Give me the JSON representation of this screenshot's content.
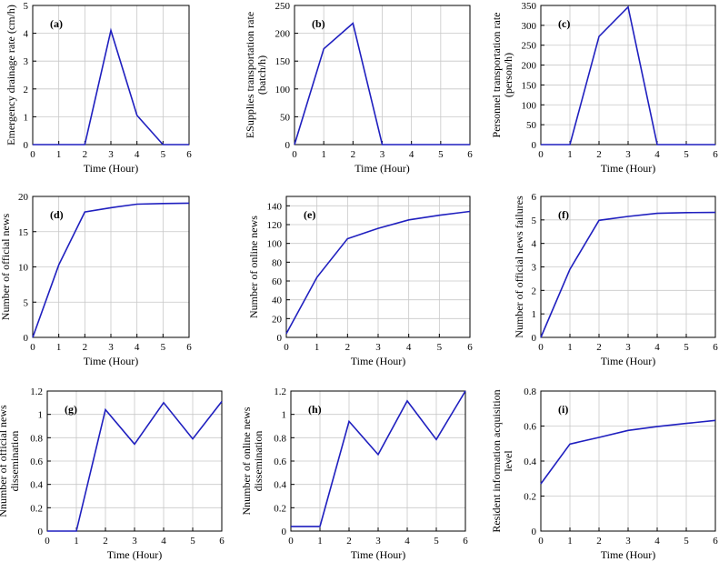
{
  "line_color": "#1f1fbf",
  "chart_data": [
    {
      "panel": "(a)",
      "type": "line",
      "xlabel": "Time (Hour)",
      "ylabel": [
        "Emergency drainage rate (cm/h)"
      ],
      "x": [
        0,
        1,
        2,
        3,
        4,
        5,
        6
      ],
      "values": [
        0,
        0,
        0,
        4.1,
        1.05,
        0,
        0
      ],
      "xlim": [
        0,
        6
      ],
      "ylim": [
        0,
        5
      ],
      "xticks": [
        "0",
        "1",
        "2",
        "3",
        "4",
        "5",
        "6"
      ],
      "yticks": [
        "0",
        "1",
        "2",
        "3",
        "4",
        "5"
      ],
      "grid": true
    },
    {
      "panel": "(b)",
      "type": "line",
      "xlabel": "Time (Hour)",
      "ylabel": [
        "ESupplies transportation rate",
        "(batch/h)"
      ],
      "x": [
        0,
        1,
        2,
        3,
        4,
        5,
        6
      ],
      "values": [
        0,
        172,
        218,
        0,
        0,
        0,
        0
      ],
      "xlim": [
        0,
        6
      ],
      "ylim": [
        0,
        250
      ],
      "xticks": [
        "0",
        "1",
        "2",
        "3",
        "4",
        "5",
        "6"
      ],
      "yticks": [
        "0",
        "50",
        "100",
        "150",
        "200",
        "250"
      ],
      "grid": true
    },
    {
      "panel": "(c)",
      "type": "line",
      "xlabel": "Time (Hour)",
      "ylabel": [
        "Personnel transportation rate",
        "(person/h)"
      ],
      "x": [
        0,
        1,
        2,
        3,
        4,
        5,
        6
      ],
      "values": [
        0,
        0,
        272,
        346,
        0,
        0,
        0
      ],
      "xlim": [
        0,
        6
      ],
      "ylim": [
        0,
        350
      ],
      "xticks": [
        "0",
        "1",
        "2",
        "3",
        "4",
        "5",
        "6"
      ],
      "yticks": [
        "0",
        "50",
        "100",
        "150",
        "200",
        "250",
        "300",
        "350"
      ],
      "grid": true
    },
    {
      "panel": "(d)",
      "type": "line",
      "xlabel": "Time (Hour)",
      "ylabel": [
        "Number of official news"
      ],
      "x": [
        0,
        1,
        2,
        3,
        4,
        5,
        6
      ],
      "values": [
        0,
        10.3,
        17.8,
        18.4,
        18.9,
        19.0,
        19.05
      ],
      "xlim": [
        0,
        6
      ],
      "ylim": [
        0,
        20
      ],
      "xticks": [
        "0",
        "1",
        "2",
        "3",
        "4",
        "5",
        "6"
      ],
      "yticks": [
        "0",
        "5",
        "10",
        "15",
        "20"
      ],
      "grid": true
    },
    {
      "panel": "(e)",
      "type": "line",
      "xlabel": "Time (Hour)",
      "ylabel": [
        "Number of online news"
      ],
      "x": [
        0,
        1,
        2,
        3,
        4,
        5,
        6
      ],
      "values": [
        4,
        64,
        105,
        116,
        125,
        130,
        134
      ],
      "xlim": [
        0,
        6
      ],
      "ylim": [
        0,
        150
      ],
      "xticks": [
        "0",
        "1",
        "2",
        "3",
        "4",
        "5",
        "6"
      ],
      "yticks": [
        "0",
        "20",
        "40",
        "60",
        "80",
        "100",
        "120",
        "140"
      ],
      "grid": true
    },
    {
      "panel": "(f)",
      "type": "line",
      "xlabel": "Time (Hour)",
      "ylabel": [
        "Number of official news failures"
      ],
      "x": [
        0,
        1,
        2,
        3,
        4,
        5,
        6
      ],
      "values": [
        0,
        2.9,
        4.98,
        5.15,
        5.28,
        5.31,
        5.32
      ],
      "xlim": [
        0,
        6
      ],
      "ylim": [
        0,
        6
      ],
      "xticks": [
        "0",
        "1",
        "2",
        "3",
        "4",
        "5",
        "6"
      ],
      "yticks": [
        "0",
        "1",
        "2",
        "3",
        "4",
        "5",
        "6"
      ],
      "grid": true
    },
    {
      "panel": "(g)",
      "type": "line",
      "xlabel": "Time (Hour)",
      "ylabel": [
        "Nnumber of official news",
        "dissemination"
      ],
      "x": [
        0,
        1,
        2,
        3,
        4,
        5,
        6
      ],
      "values": [
        0,
        0,
        1.04,
        0.745,
        1.1,
        0.79,
        1.11
      ],
      "xlim": [
        0,
        6
      ],
      "ylim": [
        0,
        1.2
      ],
      "xticks": [
        "0",
        "1",
        "2",
        "3",
        "4",
        "5",
        "6"
      ],
      "yticks": [
        "0",
        "0.2",
        "0.4",
        "0.6",
        "0.8",
        "1",
        "1.2"
      ],
      "grid": true
    },
    {
      "panel": "(h)",
      "type": "line",
      "xlabel": "Time (Hour)",
      "ylabel": [
        "Nnumber of online news",
        "dissemination"
      ],
      "x": [
        0,
        1,
        2,
        3,
        4,
        5,
        6
      ],
      "values": [
        0.04,
        0.04,
        0.94,
        0.655,
        1.115,
        0.785,
        1.2
      ],
      "xlim": [
        0,
        6
      ],
      "ylim": [
        0,
        1.2
      ],
      "xticks": [
        "0",
        "1",
        "2",
        "3",
        "4",
        "5",
        "6"
      ],
      "yticks": [
        "0",
        "0.2",
        "0.4",
        "0.6",
        "0.8",
        "1",
        "1.2"
      ],
      "grid": true
    },
    {
      "panel": "(i)",
      "type": "line",
      "xlabel": "Time (Hour)",
      "ylabel": [
        "Resident information acquisition",
        "level"
      ],
      "x": [
        0,
        1,
        2,
        3,
        4,
        5,
        6
      ],
      "values": [
        0.27,
        0.497,
        0.535,
        0.575,
        0.597,
        0.615,
        0.632
      ],
      "xlim": [
        0,
        6
      ],
      "ylim": [
        0,
        0.8
      ],
      "xticks": [
        "0",
        "1",
        "2",
        "3",
        "4",
        "5",
        "6"
      ],
      "yticks": [
        "0",
        "0.2",
        "0.4",
        "0.6",
        "0.8"
      ],
      "grid": true
    }
  ]
}
